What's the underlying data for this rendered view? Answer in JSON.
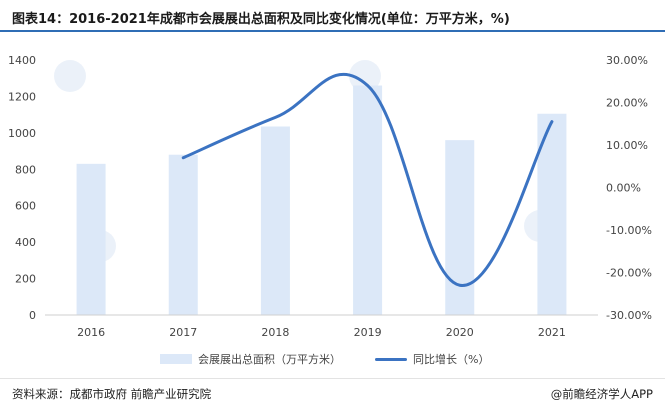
{
  "title": "图表14：2016-2021年成都市会展展出总面积及同比变化情况(单位：万平方米，%)",
  "source": "资料来源：成都市政府 前瞻产业研究院",
  "credit": "@前瞻经济学人APP",
  "colors": {
    "bar": "#dce8f8",
    "line": "#3b73c2",
    "rule": "#2f6db5"
  },
  "chart_data": {
    "type": "bar",
    "categories": [
      "2016",
      "2017",
      "2018",
      "2019",
      "2020",
      "2021"
    ],
    "series": [
      {
        "name": "会展展出总面积（万平方米）",
        "type": "bar",
        "axis": "left",
        "values": [
          830,
          880,
          1035,
          1260,
          960,
          1105
        ]
      },
      {
        "name": "同比增长（%）",
        "type": "line",
        "axis": "right",
        "smooth": true,
        "values": [
          null,
          7.0,
          16.5,
          24.0,
          -23.0,
          15.5
        ]
      }
    ],
    "left_axis": {
      "ylim": [
        0,
        1400
      ],
      "ticks": [
        "0",
        "200",
        "400",
        "600",
        "800",
        "1000",
        "1200",
        "1400"
      ]
    },
    "right_axis": {
      "ylim": [
        -30,
        30
      ],
      "ticks": [
        "-30.00%",
        "-20.00%",
        "-10.00%",
        "0.00%",
        "10.00%",
        "20.00%",
        "30.00%"
      ]
    },
    "legend": "bottom",
    "grid": false
  }
}
